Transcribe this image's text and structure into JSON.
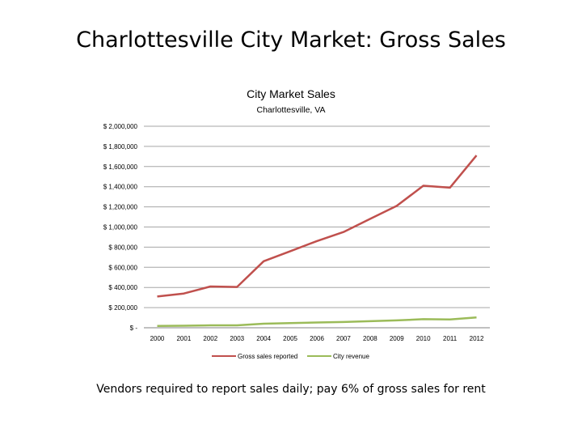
{
  "slide": {
    "title": "Charlottesville City Market:  Gross Sales",
    "caption": "Vendors required to report sales daily; pay 6% of gross sales for rent"
  },
  "chart_data": {
    "type": "line",
    "title": "City Market Sales",
    "subtitle": "Charlottesville, VA",
    "xlabel": "",
    "ylabel": "",
    "x": [
      "2000",
      "2001",
      "2002",
      "2003",
      "2004",
      "2005",
      "2006",
      "2007",
      "2008",
      "2009",
      "2010",
      "2011",
      "2012"
    ],
    "ylim": [
      0,
      2000000
    ],
    "yticks": [
      0,
      200000,
      400000,
      600000,
      800000,
      1000000,
      1200000,
      1400000,
      1600000,
      1800000,
      2000000
    ],
    "ytick_labels": [
      "$ -",
      "$ 200,000",
      "$ 400,000",
      "$ 600,000",
      "$ 800,000",
      "$ 1,000,000",
      "$ 1,200,000",
      "$ 1,400,000",
      "$ 1,600,000",
      "$ 1,800,000",
      "$ 2,000,000"
    ],
    "grid": true,
    "legend": "bottom",
    "series": [
      {
        "name": "Gross sales reported",
        "color": "#C0504D",
        "values": [
          310000,
          340000,
          410000,
          405000,
          660000,
          760000,
          860000,
          950000,
          1080000,
          1210000,
          1410000,
          1390000,
          1710000
        ]
      },
      {
        "name": "City revenue",
        "color": "#9BBB59",
        "values": [
          18000,
          20000,
          24000,
          24000,
          40000,
          46000,
          52000,
          57000,
          65000,
          73000,
          85000,
          83000,
          103000
        ]
      }
    ]
  }
}
